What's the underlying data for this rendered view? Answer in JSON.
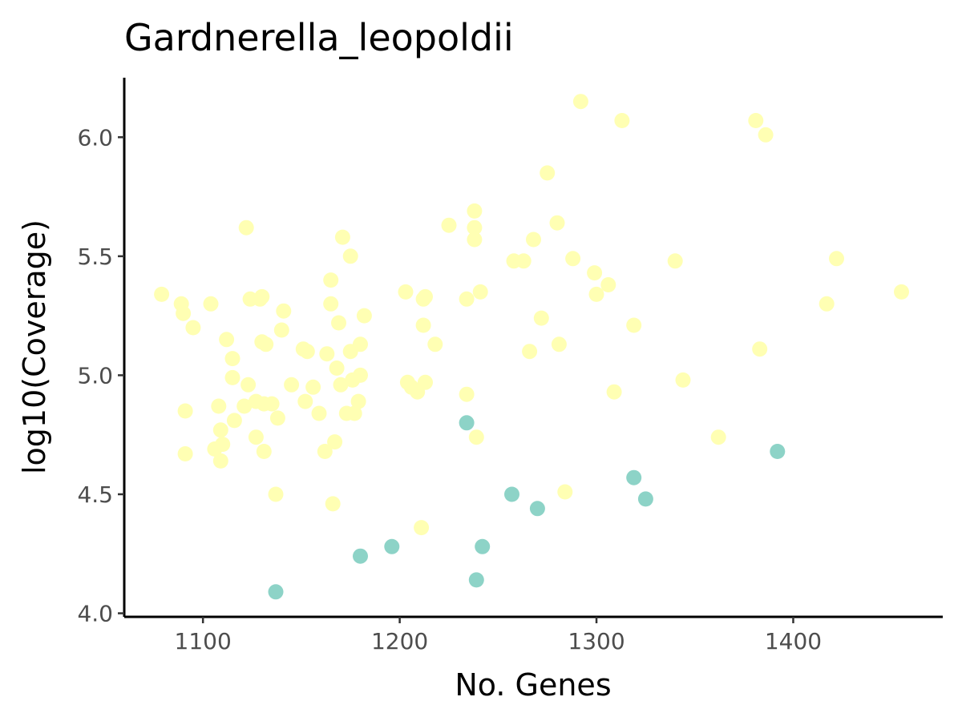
{
  "chart_data": {
    "type": "scatter",
    "title": "Gardnerella_leopoldii",
    "xlabel": "No. Genes",
    "ylabel": "log10(Coverage)",
    "xlim": [
      1060,
      1476
    ],
    "ylim": [
      3.985,
      6.25
    ],
    "xticks": [
      1100,
      1200,
      1300,
      1400
    ],
    "yticks": [
      4.0,
      4.5,
      5.0,
      5.5,
      6.0
    ],
    "xtick_labels": [
      "1100",
      "1200",
      "1300",
      "1400"
    ],
    "ytick_labels": [
      "4.0",
      "4.5",
      "5.0",
      "5.5",
      "6.0"
    ],
    "grid": false,
    "legend": "none",
    "series": [
      {
        "color": "#ffffb3",
        "points": [
          [
            1079,
            5.34
          ],
          [
            1089,
            5.3
          ],
          [
            1090,
            5.26
          ],
          [
            1091,
            4.85
          ],
          [
            1091,
            4.67
          ],
          [
            1095,
            5.2
          ],
          [
            1104,
            5.3
          ],
          [
            1106,
            4.69
          ],
          [
            1108,
            4.87
          ],
          [
            1109,
            4.77
          ],
          [
            1109,
            4.64
          ],
          [
            1110,
            4.71
          ],
          [
            1112,
            5.15
          ],
          [
            1115,
            5.07
          ],
          [
            1115,
            4.99
          ],
          [
            1116,
            4.81
          ],
          [
            1121,
            4.87
          ],
          [
            1122,
            5.62
          ],
          [
            1123,
            4.96
          ],
          [
            1124,
            5.32
          ],
          [
            1127,
            4.89
          ],
          [
            1127,
            4.74
          ],
          [
            1129,
            5.32
          ],
          [
            1130,
            5.14
          ],
          [
            1130,
            5.33
          ],
          [
            1131,
            4.88
          ],
          [
            1131,
            4.68
          ],
          [
            1132,
            5.13
          ],
          [
            1135,
            4.88
          ],
          [
            1137,
            4.5
          ],
          [
            1138,
            4.82
          ],
          [
            1140,
            5.19
          ],
          [
            1141,
            5.27
          ],
          [
            1145,
            4.96
          ],
          [
            1151,
            5.11
          ],
          [
            1152,
            4.89
          ],
          [
            1153,
            5.1
          ],
          [
            1156,
            4.95
          ],
          [
            1159,
            4.84
          ],
          [
            1162,
            4.68
          ],
          [
            1163,
            5.09
          ],
          [
            1165,
            5.4
          ],
          [
            1165,
            5.3
          ],
          [
            1166,
            4.46
          ],
          [
            1167,
            4.72
          ],
          [
            1168,
            5.03
          ],
          [
            1169,
            5.22
          ],
          [
            1170,
            4.96
          ],
          [
            1171,
            5.58
          ],
          [
            1173,
            4.84
          ],
          [
            1175,
            5.1
          ],
          [
            1175,
            5.5
          ],
          [
            1176,
            4.98
          ],
          [
            1177,
            4.84
          ],
          [
            1179,
            4.89
          ],
          [
            1180,
            5.13
          ],
          [
            1180,
            5.0
          ],
          [
            1182,
            5.25
          ],
          [
            1203,
            5.35
          ],
          [
            1204,
            4.97
          ],
          [
            1206,
            4.95
          ],
          [
            1209,
            4.93
          ],
          [
            1211,
            4.36
          ],
          [
            1212,
            5.21
          ],
          [
            1212,
            5.32
          ],
          [
            1213,
            5.33
          ],
          [
            1213,
            4.97
          ],
          [
            1218,
            5.13
          ],
          [
            1225,
            5.63
          ],
          [
            1234,
            5.32
          ],
          [
            1234,
            4.92
          ],
          [
            1238,
            5.69
          ],
          [
            1238,
            5.62
          ],
          [
            1238,
            5.57
          ],
          [
            1239,
            4.74
          ],
          [
            1241,
            5.35
          ],
          [
            1258,
            5.48
          ],
          [
            1263,
            5.48
          ],
          [
            1266,
            5.1
          ],
          [
            1268,
            5.57
          ],
          [
            1272,
            5.24
          ],
          [
            1275,
            5.85
          ],
          [
            1280,
            5.64
          ],
          [
            1281,
            5.13
          ],
          [
            1284,
            4.51
          ],
          [
            1288,
            5.49
          ],
          [
            1292,
            6.15
          ],
          [
            1299,
            5.43
          ],
          [
            1300,
            5.34
          ],
          [
            1306,
            5.38
          ],
          [
            1309,
            4.93
          ],
          [
            1313,
            6.07
          ],
          [
            1319,
            5.21
          ],
          [
            1340,
            5.48
          ],
          [
            1344,
            4.98
          ],
          [
            1362,
            4.74
          ],
          [
            1381,
            6.07
          ],
          [
            1383,
            5.11
          ],
          [
            1386,
            6.01
          ],
          [
            1417,
            5.3
          ],
          [
            1422,
            5.49
          ],
          [
            1455,
            5.35
          ]
        ]
      },
      {
        "color": "#8dd3c7",
        "points": [
          [
            1137,
            4.09
          ],
          [
            1180,
            4.24
          ],
          [
            1196,
            4.28
          ],
          [
            1234,
            4.8
          ],
          [
            1239,
            4.14
          ],
          [
            1242,
            4.28
          ],
          [
            1257,
            4.5
          ],
          [
            1270,
            4.44
          ],
          [
            1319,
            4.57
          ],
          [
            1325,
            4.48
          ],
          [
            1392,
            4.68
          ]
        ]
      }
    ]
  }
}
